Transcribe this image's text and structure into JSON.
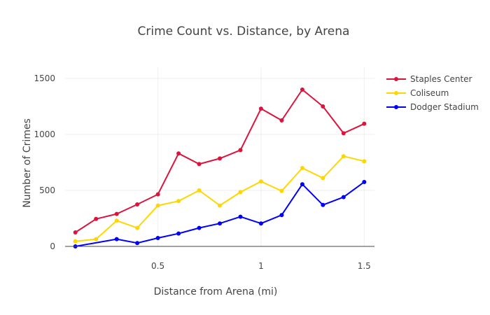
{
  "chart_data": {
    "type": "line",
    "title": "Crime Count vs. Distance, by Arena",
    "xlabel": "Distance from Arena (mi)",
    "ylabel": "Number of Crimes",
    "x": [
      0.1,
      0.2,
      0.3,
      0.4,
      0.5,
      0.6,
      0.7,
      0.8,
      0.9,
      1.0,
      1.1,
      1.2,
      1.3,
      1.4,
      1.5
    ],
    "xlim": [
      0.05,
      1.55
    ],
    "ylim": [
      0,
      1600
    ],
    "x_ticks": [
      0.5,
      1,
      1.5
    ],
    "x_tick_labels": [
      "0.5",
      "1",
      "1.5"
    ],
    "y_ticks": [
      0,
      500,
      1000,
      1500
    ],
    "y_tick_labels": [
      "0",
      "500",
      "1000",
      "1500"
    ],
    "grid": true,
    "legend_position": "top-right",
    "series": [
      {
        "name": "Staples Center",
        "color": "#dc143c",
        "values": [
          125,
          245,
          290,
          375,
          465,
          830,
          735,
          785,
          860,
          1230,
          1125,
          1400,
          1250,
          1010,
          1095
        ]
      },
      {
        "name": "Coliseum",
        "color": "#ffd700",
        "values": [
          45,
          65,
          230,
          165,
          365,
          405,
          500,
          365,
          485,
          580,
          495,
          700,
          610,
          805,
          760
        ]
      },
      {
        "name": "Dodger Stadium",
        "color": "#0000ff",
        "values": [
          0,
          null,
          65,
          30,
          75,
          115,
          165,
          205,
          265,
          205,
          280,
          555,
          370,
          440,
          575
        ]
      }
    ]
  }
}
